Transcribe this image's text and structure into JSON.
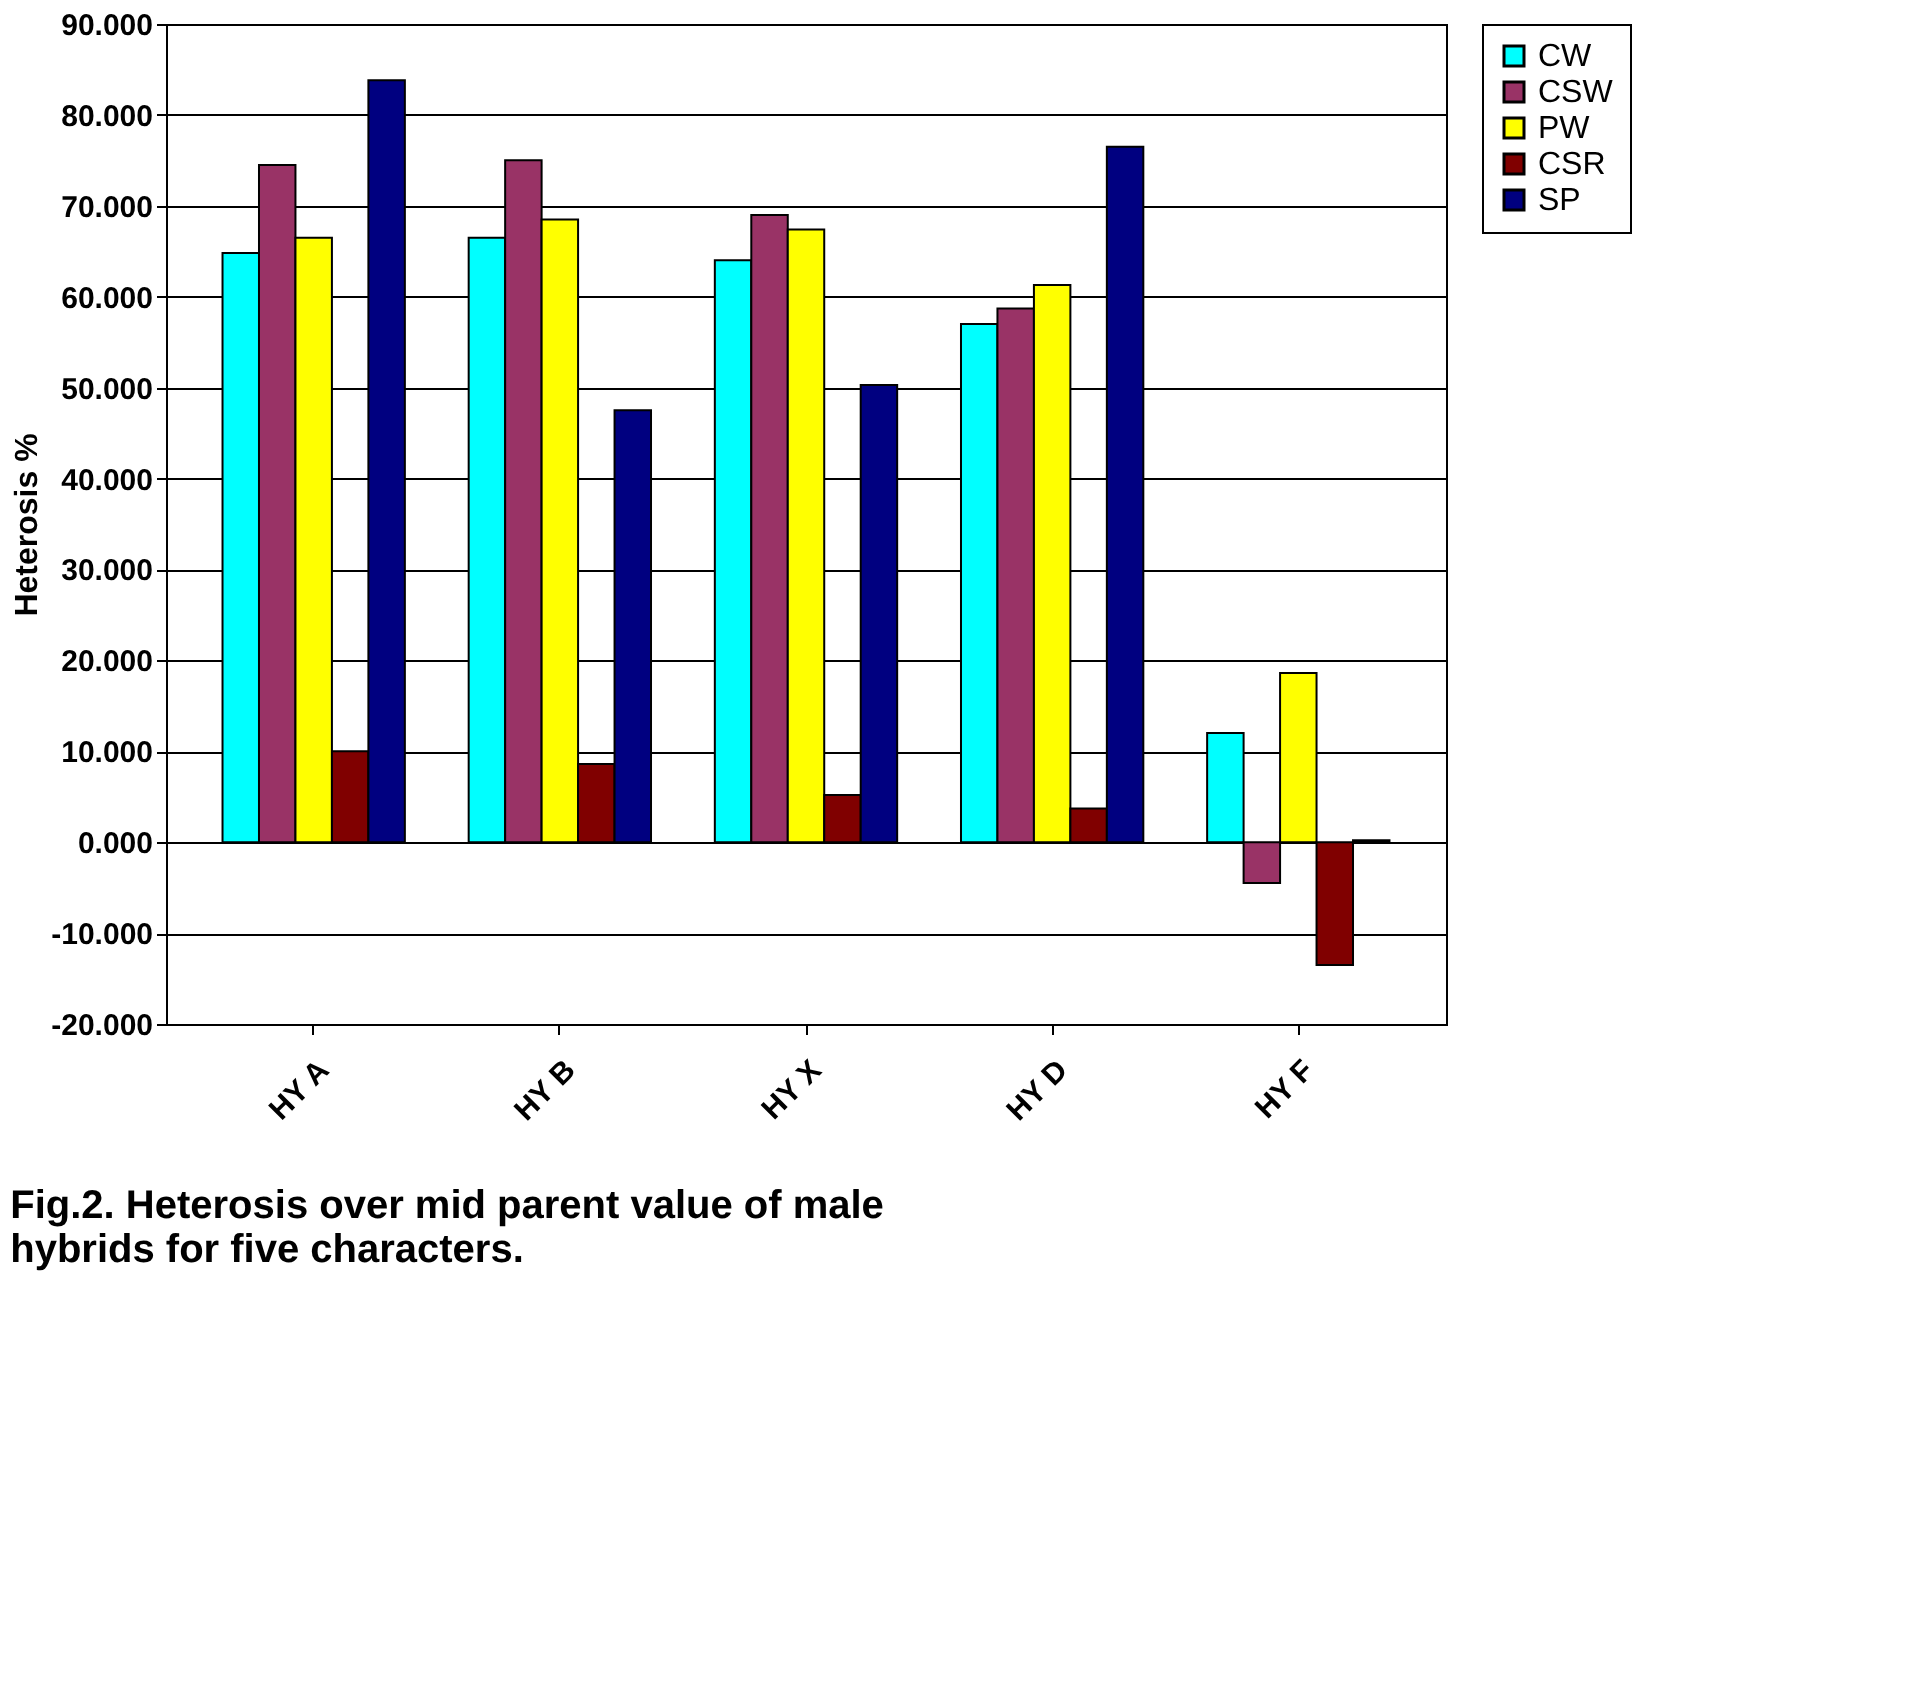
{
  "chart_data": {
    "type": "bar",
    "ylabel": "Heterosis %",
    "categories": [
      "HY A",
      "HY B",
      "HY X",
      "HY D",
      "HY F"
    ],
    "series": [
      {
        "name": "CW",
        "color": "#00ffff",
        "values": [
          64.8,
          66.5,
          64.0,
          57.0,
          12.0
        ]
      },
      {
        "name": "CSW",
        "color": "#993366",
        "values": [
          74.5,
          75.0,
          69.0,
          58.7,
          -4.5
        ]
      },
      {
        "name": "PW",
        "color": "#ffff00",
        "values": [
          66.5,
          68.5,
          67.4,
          61.3,
          18.6
        ]
      },
      {
        "name": "CSR",
        "color": "#800000",
        "values": [
          10.0,
          8.6,
          5.2,
          3.7,
          -13.5
        ]
      },
      {
        "name": "SP",
        "color": "#000080",
        "values": [
          83.8,
          47.5,
          50.3,
          76.5,
          0.2
        ]
      }
    ],
    "ylim": [
      -20,
      90
    ],
    "yticks": [
      {
        "value": -20,
        "label": "-20.000"
      },
      {
        "value": -10,
        "label": "-10.000"
      },
      {
        "value": 0,
        "label": "0.000"
      },
      {
        "value": 10,
        "label": "10.000"
      },
      {
        "value": 20,
        "label": "20.000"
      },
      {
        "value": 30,
        "label": "30.000"
      },
      {
        "value": 40,
        "label": "40.000"
      },
      {
        "value": 50,
        "label": "50.000"
      },
      {
        "value": 60,
        "label": "60.000"
      },
      {
        "value": 70,
        "label": "70.000"
      },
      {
        "value": 80,
        "label": "80.000"
      },
      {
        "value": 90,
        "label": "90.000"
      }
    ],
    "grid": "y",
    "legend": "right",
    "annotations": [
      "Fig.2. Heterosis over mid parent value of male hybrids for five characters."
    ]
  }
}
